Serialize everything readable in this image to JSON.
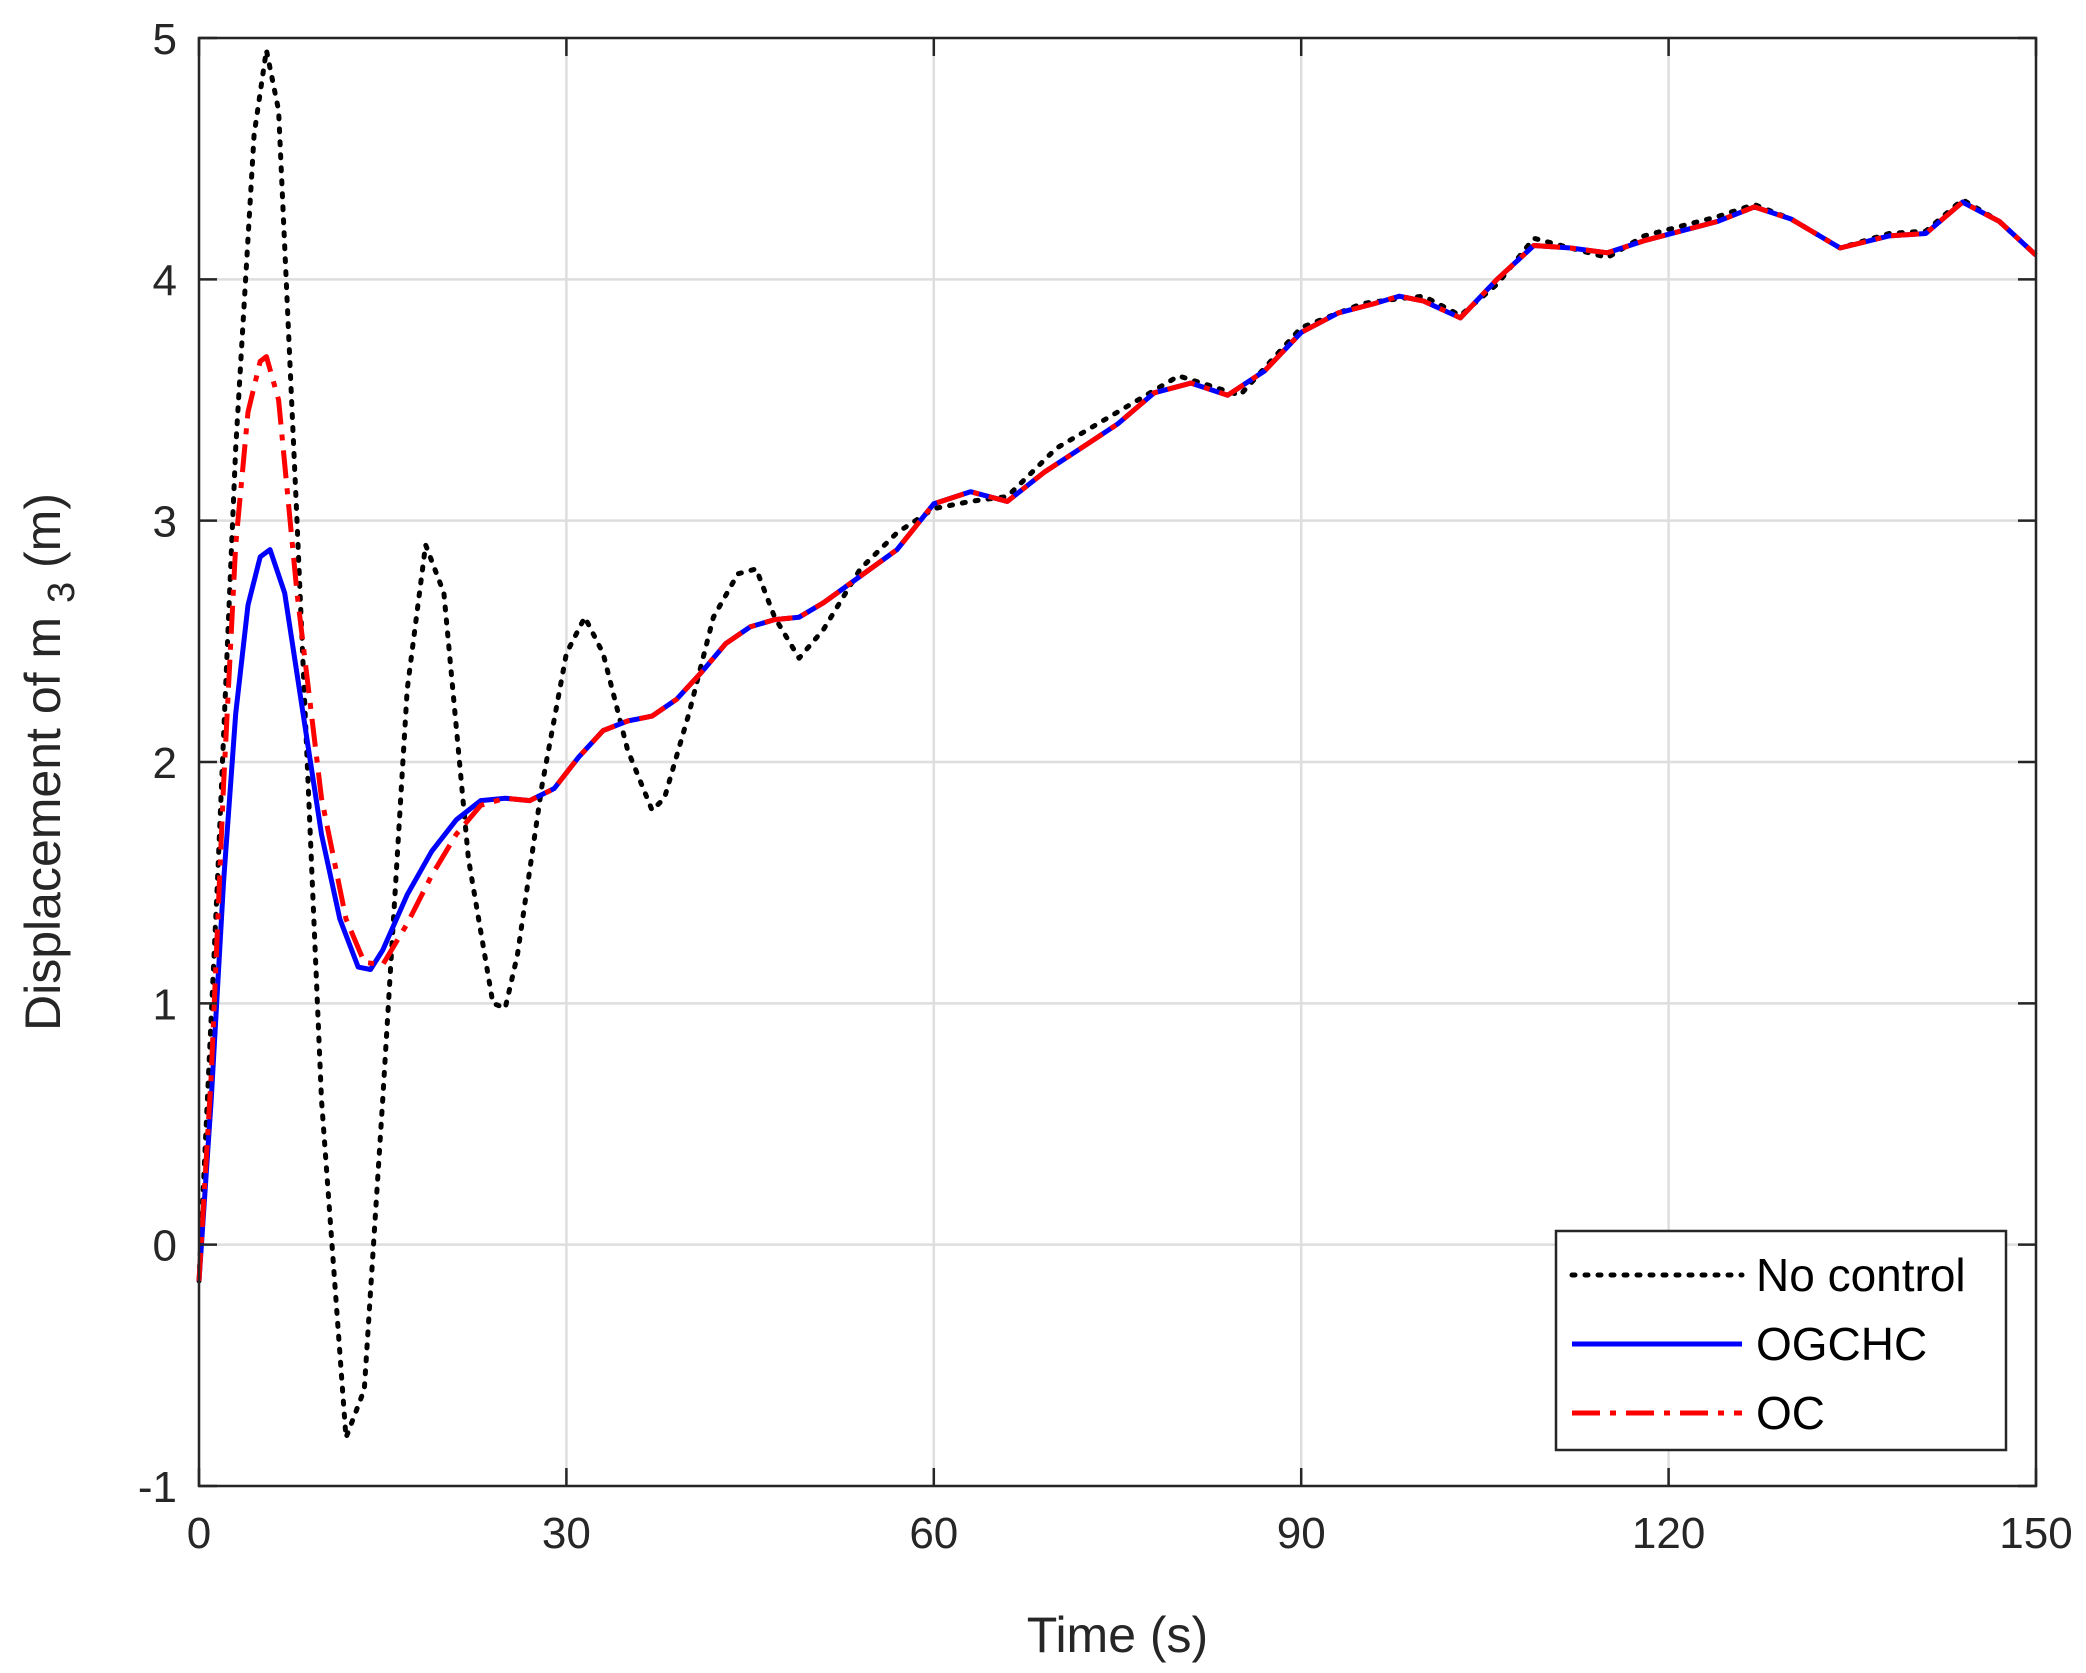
{
  "chart_data": {
    "type": "line",
    "xlabel": "Time (s)",
    "ylabel": "Displacement of m",
    "ylabel_subscript": "3",
    "ylabel_suffix": "(m)",
    "xlim": [
      0,
      150
    ],
    "ylim": [
      -1,
      5
    ],
    "xticks": [
      0,
      30,
      60,
      90,
      120,
      150
    ],
    "yticks": [
      -1,
      0,
      1,
      2,
      3,
      4,
      5
    ],
    "grid": true,
    "legend_position": "bottom-right",
    "series": [
      {
        "name": "No control",
        "color": "#000000",
        "style": "dotted",
        "x": [
          0,
          1.5,
          3,
          4.5,
          5.5,
          6.5,
          8,
          10,
          12,
          13.5,
          15,
          17,
          18.5,
          20,
          22,
          24,
          25,
          26,
          28,
          30,
          31.5,
          33,
          35,
          37,
          38,
          40,
          42,
          44,
          45.5,
          47,
          49,
          51,
          54,
          57,
          60,
          63,
          66,
          70,
          75,
          80,
          85,
          90,
          95,
          98,
          100,
          103,
          106,
          109,
          112,
          115,
          118,
          121,
          124,
          127,
          130,
          134,
          138,
          141,
          144,
          147,
          150
        ],
        "y": [
          -0.15,
          1.5,
          3.3,
          4.6,
          4.95,
          4.7,
          3.0,
          0.6,
          -0.8,
          -0.6,
          0.6,
          2.3,
          2.9,
          2.7,
          1.6,
          1.0,
          0.98,
          1.2,
          1.9,
          2.45,
          2.6,
          2.45,
          2.05,
          1.8,
          1.85,
          2.2,
          2.6,
          2.78,
          2.8,
          2.6,
          2.43,
          2.55,
          2.8,
          2.95,
          3.05,
          3.08,
          3.1,
          3.3,
          3.45,
          3.6,
          3.52,
          3.8,
          3.9,
          3.92,
          3.93,
          3.85,
          3.98,
          4.17,
          4.13,
          4.09,
          4.18,
          4.22,
          4.26,
          4.31,
          4.25,
          4.13,
          4.19,
          4.2,
          4.33,
          4.24,
          4.1
        ]
      },
      {
        "name": "OGCHC",
        "color": "#0000ff",
        "style": "solid",
        "x": [
          0,
          1,
          2,
          3,
          4,
          5,
          5.8,
          7,
          8.5,
          10,
          11.5,
          13,
          14,
          15,
          17,
          19,
          21,
          23,
          25,
          27,
          29,
          31,
          33,
          35,
          37,
          39,
          41,
          43,
          45,
          47,
          49,
          51,
          54,
          57,
          60,
          63,
          66,
          69,
          72,
          75,
          78,
          81,
          84,
          87,
          90,
          93,
          96,
          98,
          100,
          103,
          106,
          109,
          112,
          115,
          118,
          121,
          124,
          127,
          130,
          134,
          138,
          141,
          144,
          147,
          150
        ],
        "y": [
          -0.15,
          0.6,
          1.5,
          2.2,
          2.65,
          2.85,
          2.88,
          2.7,
          2.2,
          1.7,
          1.35,
          1.15,
          1.14,
          1.22,
          1.45,
          1.63,
          1.76,
          1.84,
          1.85,
          1.84,
          1.89,
          2.02,
          2.13,
          2.17,
          2.19,
          2.26,
          2.37,
          2.49,
          2.56,
          2.59,
          2.6,
          2.66,
          2.77,
          2.88,
          3.07,
          3.12,
          3.08,
          3.2,
          3.3,
          3.4,
          3.53,
          3.57,
          3.52,
          3.62,
          3.78,
          3.86,
          3.9,
          3.93,
          3.91,
          3.84,
          4.0,
          4.14,
          4.13,
          4.11,
          4.16,
          4.2,
          4.24,
          4.3,
          4.25,
          4.13,
          4.18,
          4.19,
          4.32,
          4.24,
          4.1
        ]
      },
      {
        "name": "OC",
        "color": "#ff0000",
        "style": "dashdot",
        "x": [
          0,
          1,
          2,
          3,
          4,
          5,
          5.5,
          6.5,
          8,
          10,
          12,
          13.5,
          15,
          17,
          19,
          21,
          23,
          25,
          27,
          29,
          31,
          33,
          35,
          37,
          39,
          41,
          43,
          45,
          47,
          49,
          51,
          54,
          57,
          60,
          63,
          66,
          69,
          72,
          75,
          78,
          81,
          84,
          87,
          90,
          93,
          96,
          98,
          100,
          103,
          106,
          109,
          112,
          115,
          118,
          121,
          124,
          127,
          130,
          134,
          138,
          141,
          144,
          147,
          150
        ],
        "y": [
          -0.15,
          0.7,
          1.9,
          2.9,
          3.45,
          3.66,
          3.68,
          3.5,
          2.7,
          1.85,
          1.35,
          1.17,
          1.16,
          1.33,
          1.53,
          1.7,
          1.82,
          1.85,
          1.84,
          1.89,
          2.02,
          2.13,
          2.17,
          2.19,
          2.26,
          2.37,
          2.49,
          2.56,
          2.59,
          2.6,
          2.66,
          2.77,
          2.88,
          3.07,
          3.12,
          3.08,
          3.2,
          3.3,
          3.4,
          3.53,
          3.57,
          3.52,
          3.62,
          3.78,
          3.86,
          3.9,
          3.93,
          3.91,
          3.84,
          4.0,
          4.14,
          4.13,
          4.11,
          4.16,
          4.2,
          4.24,
          4.3,
          4.25,
          4.13,
          4.18,
          4.19,
          4.32,
          4.24,
          4.1
        ]
      }
    ]
  }
}
